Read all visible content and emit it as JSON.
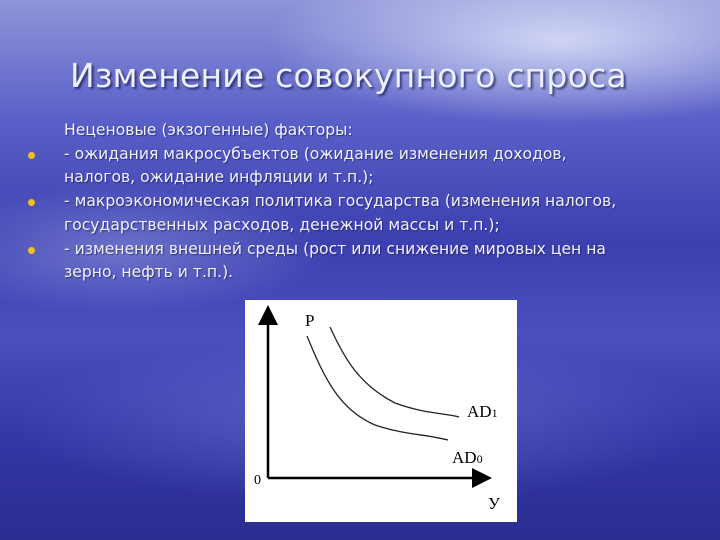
{
  "slide": {
    "title": "Изменение совокупного спроса",
    "intro": "Неценовые (экзогенные) факторы:",
    "items": [
      {
        "lines": [
          "-   ожидания  макросубъектов (ожидание изменения доходов,",
          "налогов, ожидание инфляции и т.п.);"
        ]
      },
      {
        "lines": [
          "-   макроэкономическая политика государства (изменения налогов,",
          "государственных расходов, денежной массы и т.п.);"
        ]
      },
      {
        "lines": [
          "-   изменения внешней среды (рост или снижение мировых цен на",
          "зерно, нефть и т.п.)."
        ]
      }
    ],
    "bullet_color": "#f0c020"
  },
  "diagram": {
    "y_axis_label": "P",
    "x_axis_label": "У",
    "origin_label": "0",
    "curves": [
      {
        "name": "AD",
        "subscript": "1"
      },
      {
        "name": "AD",
        "subscript": "0"
      }
    ]
  }
}
